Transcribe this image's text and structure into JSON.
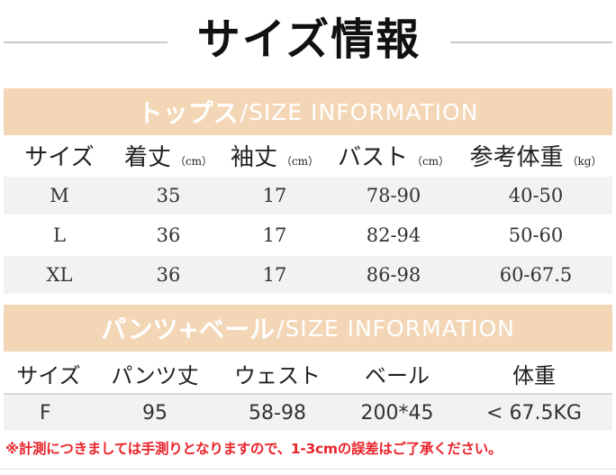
{
  "title": "サイズ情報",
  "tops": {
    "band_jp": "トップス",
    "band_en": "/SIZE INFORMATION",
    "headers": [
      {
        "label": "サイズ",
        "unit": ""
      },
      {
        "label": "着丈",
        "unit": "（cm）"
      },
      {
        "label": "袖丈",
        "unit": "（cm）"
      },
      {
        "label": "バスト",
        "unit": "（cm）"
      },
      {
        "label": "参考体重",
        "unit": "（kg）"
      }
    ],
    "rows": [
      [
        "M",
        "35",
        "17",
        "78-90",
        "40-50"
      ],
      [
        "L",
        "36",
        "17",
        "82-94",
        "50-60"
      ],
      [
        "XL",
        "36",
        "17",
        "86-98",
        "60-67.5"
      ]
    ]
  },
  "pants": {
    "band_jp": "パンツ+ベール",
    "band_en": "/SIZE INFORMATION",
    "headers": [
      "サイズ",
      "パンツ丈",
      "ウェスト",
      "ベール",
      "体重"
    ],
    "rows": [
      [
        "F",
        "95",
        "58-98",
        "200*45",
        "< 67.5KG"
      ]
    ]
  },
  "note": "※計測につきましては手測りとなりますので、1-3cmの誤差はご了承ください。"
}
